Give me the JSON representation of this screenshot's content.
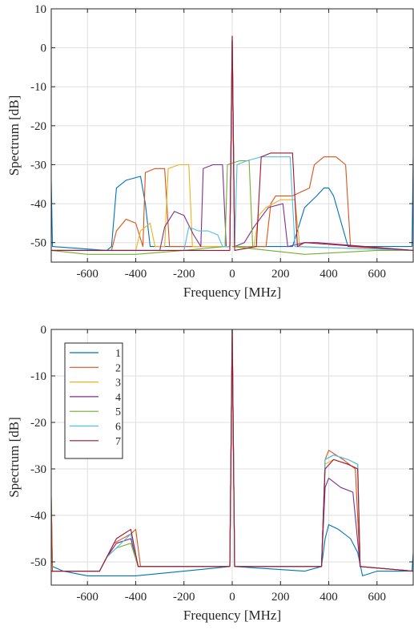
{
  "colors": [
    "#0072BD",
    "#D95319",
    "#EDB120",
    "#7E2F8E",
    "#77AC30",
    "#4DBEEE",
    "#A2142F"
  ],
  "chart_data": [
    {
      "type": "line",
      "xlabel": "Frequency [MHz]",
      "ylabel": "Spectrum [dB]",
      "xlim": [
        -750,
        750
      ],
      "ylim": [
        -55,
        10
      ],
      "xticks": [
        -600,
        -400,
        -200,
        0,
        200,
        400,
        600
      ],
      "xtick_labels": [
        "-600",
        "-400",
        "-200",
        "0",
        "200",
        "400",
        "600"
      ],
      "yticks": [
        10,
        0,
        -10,
        -20,
        -30,
        -40,
        -50
      ],
      "ytick_labels": [
        "10",
        "0",
        "-10",
        "-20",
        "-30",
        "-40",
        "-50"
      ],
      "grid": true,
      "legend": false,
      "series": [
        {
          "points": [
            [
              -750,
              -34
            ],
            [
              -745,
              -51
            ],
            [
              -520,
              -52
            ],
            [
              -500,
              -51
            ],
            [
              -480,
              -36
            ],
            [
              -440,
              -34
            ],
            [
              -380,
              -33
            ],
            [
              -360,
              -40
            ],
            [
              -340,
              -51
            ],
            [
              -60,
              -51
            ],
            [
              -10,
              -51
            ],
            [
              0,
              3
            ],
            [
              10,
              -51
            ],
            [
              250,
              -51
            ],
            [
              300,
              -41
            ],
            [
              350,
              -38
            ],
            [
              380,
              -36
            ],
            [
              400,
              -36
            ],
            [
              420,
              -38
            ],
            [
              480,
              -51
            ],
            [
              745,
              -51
            ],
            [
              750,
              -28
            ]
          ]
        },
        {
          "points": [
            [
              -750,
              -52
            ],
            [
              -500,
              -52
            ],
            [
              -480,
              -47
            ],
            [
              -440,
              -44
            ],
            [
              -400,
              -45
            ],
            [
              -370,
              -51
            ],
            [
              -360,
              -32
            ],
            [
              -320,
              -31
            ],
            [
              -280,
              -31
            ],
            [
              -260,
              -51
            ],
            [
              -10,
              -51
            ],
            [
              0,
              2
            ],
            [
              10,
              -51
            ],
            [
              140,
              -51
            ],
            [
              160,
              -40
            ],
            [
              180,
              -38
            ],
            [
              250,
              -38
            ],
            [
              320,
              -36
            ],
            [
              340,
              -30
            ],
            [
              380,
              -28
            ],
            [
              430,
              -28
            ],
            [
              470,
              -30
            ],
            [
              490,
              -51
            ],
            [
              750,
              -52
            ]
          ]
        },
        {
          "points": [
            [
              -750,
              -52
            ],
            [
              -400,
              -52
            ],
            [
              -380,
              -47
            ],
            [
              -340,
              -45
            ],
            [
              -320,
              -51
            ],
            [
              -280,
              -51
            ],
            [
              -265,
              -31
            ],
            [
              -220,
              -30
            ],
            [
              -180,
              -30
            ],
            [
              -165,
              -51
            ],
            [
              -10,
              -51
            ],
            [
              0,
              2
            ],
            [
              10,
              -51
            ],
            [
              90,
              -51
            ],
            [
              110,
              -43
            ],
            [
              140,
              -41
            ],
            [
              200,
              -39
            ],
            [
              260,
              -39
            ],
            [
              280,
              -51
            ],
            [
              750,
              -52
            ]
          ]
        },
        {
          "points": [
            [
              -750,
              -52
            ],
            [
              -300,
              -52
            ],
            [
              -280,
              -46
            ],
            [
              -240,
              -42
            ],
            [
              -200,
              -43
            ],
            [
              -160,
              -48
            ],
            [
              -130,
              -51
            ],
            [
              -120,
              -31
            ],
            [
              -80,
              -30
            ],
            [
              -40,
              -30
            ],
            [
              -25,
              -51
            ],
            [
              -10,
              -51
            ],
            [
              0,
              2
            ],
            [
              10,
              -51
            ],
            [
              50,
              -50
            ],
            [
              90,
              -46
            ],
            [
              150,
              -41
            ],
            [
              210,
              -40
            ],
            [
              230,
              -51
            ],
            [
              300,
              -50
            ],
            [
              350,
              -50
            ],
            [
              750,
              -52
            ]
          ]
        },
        {
          "points": [
            [
              -750,
              -52
            ],
            [
              -600,
              -53
            ],
            [
              -400,
              -53
            ],
            [
              -200,
              -52
            ],
            [
              -30,
              -51
            ],
            [
              -20,
              -30
            ],
            [
              30,
              -29
            ],
            [
              70,
              -29
            ],
            [
              85,
              -51
            ],
            [
              0,
              -51
            ],
            [
              300,
              -53
            ],
            [
              600,
              -52
            ],
            [
              750,
              -52
            ]
          ]
        },
        {
          "points": [
            [
              -750,
              -52
            ],
            [
              -200,
              -52
            ],
            [
              -180,
              -46
            ],
            [
              -140,
              -47
            ],
            [
              -100,
              -47
            ],
            [
              -60,
              -48
            ],
            [
              -40,
              -51
            ],
            [
              -10,
              -51
            ],
            [
              0,
              2
            ],
            [
              10,
              -51
            ],
            [
              20,
              -30
            ],
            [
              60,
              -29
            ],
            [
              120,
              -28
            ],
            [
              200,
              -28
            ],
            [
              240,
              -28
            ],
            [
              260,
              -51
            ],
            [
              750,
              -52
            ]
          ]
        },
        {
          "points": [
            [
              -750,
              -52
            ],
            [
              -10,
              -52
            ],
            [
              0,
              3
            ],
            [
              10,
              -52
            ],
            [
              100,
              -51
            ],
            [
              120,
              -28
            ],
            [
              160,
              -27
            ],
            [
              220,
              -27
            ],
            [
              250,
              -27
            ],
            [
              270,
              -51
            ],
            [
              300,
              -50
            ],
            [
              750,
              -52
            ]
          ]
        }
      ]
    },
    {
      "type": "line",
      "xlabel": "Frequency [MHz]",
      "ylabel": "Spectrum [dB]",
      "xlim": [
        -750,
        750
      ],
      "ylim": [
        -55,
        0
      ],
      "xticks": [
        -600,
        -400,
        -200,
        0,
        200,
        400,
        600
      ],
      "xtick_labels": [
        "-600",
        "-400",
        "-200",
        "0",
        "200",
        "400",
        "600"
      ],
      "yticks": [
        0,
        -10,
        -20,
        -30,
        -40,
        -50
      ],
      "ytick_labels": [
        "0",
        "-10",
        "-20",
        "-30",
        "-40",
        "-50"
      ],
      "grid": true,
      "legend": true,
      "legend_position": "top-left",
      "series": [
        {
          "name": "1",
          "points": [
            [
              -750,
              -36
            ],
            [
              -745,
              -51
            ],
            [
              -700,
              -52
            ],
            [
              -600,
              -53
            ],
            [
              -400,
              -53
            ],
            [
              -200,
              -52
            ],
            [
              -10,
              -51
            ],
            [
              0,
              0
            ],
            [
              10,
              -51
            ],
            [
              300,
              -52
            ],
            [
              370,
              -51
            ],
            [
              385,
              -45
            ],
            [
              400,
              -42
            ],
            [
              440,
              -43
            ],
            [
              490,
              -45
            ],
            [
              520,
              -48
            ],
            [
              540,
              -53
            ],
            [
              600,
              -52
            ],
            [
              745,
              -52
            ],
            [
              750,
              -48
            ]
          ]
        },
        {
          "name": "2",
          "points": [
            [
              -750,
              -36
            ],
            [
              -745,
              -52
            ],
            [
              -550,
              -52
            ],
            [
              -520,
              -49
            ],
            [
              -490,
              -46
            ],
            [
              -420,
              -44
            ],
            [
              -400,
              -43
            ],
            [
              -380,
              -51
            ],
            [
              -200,
              -51
            ],
            [
              -10,
              -51
            ],
            [
              0,
              0
            ],
            [
              10,
              -51
            ],
            [
              370,
              -51
            ],
            [
              385,
              -28
            ],
            [
              400,
              -26
            ],
            [
              460,
              -28
            ],
            [
              510,
              -30
            ],
            [
              530,
              -51
            ],
            [
              750,
              -52
            ]
          ]
        },
        {
          "name": "3",
          "points": [
            [
              -750,
              -52
            ],
            [
              -550,
              -52
            ],
            [
              -520,
              -49
            ],
            [
              -480,
              -46
            ],
            [
              -420,
              -45
            ],
            [
              -390,
              -51
            ],
            [
              -10,
              -51
            ],
            [
              0,
              0
            ],
            [
              10,
              -51
            ],
            [
              370,
              -51
            ],
            [
              385,
              -29
            ],
            [
              420,
              -28
            ],
            [
              480,
              -29
            ],
            [
              520,
              -30
            ],
            [
              530,
              -51
            ],
            [
              750,
              -52
            ]
          ]
        },
        {
          "name": "4",
          "points": [
            [
              -750,
              -52
            ],
            [
              -550,
              -52
            ],
            [
              -520,
              -49
            ],
            [
              -480,
              -46
            ],
            [
              -420,
              -45
            ],
            [
              -390,
              -51
            ],
            [
              -10,
              -51
            ],
            [
              0,
              0
            ],
            [
              10,
              -51
            ],
            [
              370,
              -51
            ],
            [
              385,
              -34
            ],
            [
              400,
              -32
            ],
            [
              450,
              -34
            ],
            [
              500,
              -35
            ],
            [
              530,
              -51
            ],
            [
              750,
              -52
            ]
          ]
        },
        {
          "name": "5",
          "points": [
            [
              -750,
              -52
            ],
            [
              -550,
              -52
            ],
            [
              -520,
              -49
            ],
            [
              -480,
              -47
            ],
            [
              -420,
              -46
            ],
            [
              -390,
              -51
            ],
            [
              -10,
              -51
            ],
            [
              0,
              0
            ],
            [
              10,
              -51
            ],
            [
              370,
              -51
            ],
            [
              385,
              -28
            ],
            [
              420,
              -27
            ],
            [
              480,
              -28
            ],
            [
              520,
              -29
            ],
            [
              530,
              -51
            ],
            [
              750,
              -52
            ]
          ]
        },
        {
          "name": "6",
          "points": [
            [
              -750,
              -52
            ],
            [
              -550,
              -52
            ],
            [
              -520,
              -49
            ],
            [
              -480,
              -47
            ],
            [
              -420,
              -44
            ],
            [
              -390,
              -51
            ],
            [
              -10,
              -51
            ],
            [
              0,
              0
            ],
            [
              10,
              -51
            ],
            [
              370,
              -51
            ],
            [
              385,
              -28
            ],
            [
              420,
              -27
            ],
            [
              480,
              -28
            ],
            [
              520,
              -29
            ],
            [
              530,
              -51
            ],
            [
              750,
              -52
            ]
          ]
        },
        {
          "name": "7",
          "points": [
            [
              -750,
              -52
            ],
            [
              -550,
              -52
            ],
            [
              -520,
              -49
            ],
            [
              -480,
              -45
            ],
            [
              -420,
              -43
            ],
            [
              -390,
              -51
            ],
            [
              -10,
              -51
            ],
            [
              0,
              0
            ],
            [
              10,
              -51
            ],
            [
              370,
              -51
            ],
            [
              385,
              -30
            ],
            [
              420,
              -28
            ],
            [
              480,
              -29
            ],
            [
              520,
              -30
            ],
            [
              530,
              -51
            ],
            [
              750,
              -52
            ]
          ]
        }
      ]
    }
  ]
}
